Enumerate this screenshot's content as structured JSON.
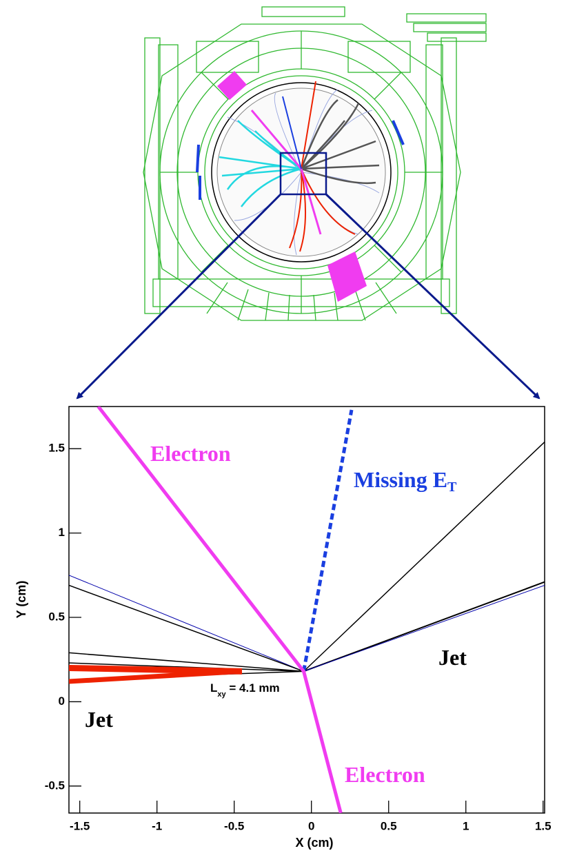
{
  "chart_data": {
    "type": "line",
    "xlabel": "X (cm)",
    "ylabel": "Y (cm)",
    "xlim": [
      -1.57,
      1.51
    ],
    "ylim": [
      -0.66,
      1.75
    ],
    "xticks": [
      -1.5,
      -1,
      -0.5,
      0,
      0.5,
      1,
      1.5
    ],
    "yticks": [
      -0.5,
      0,
      0.5,
      1,
      1.5
    ],
    "series": [
      {
        "color": "#0000aa",
        "width": 1,
        "x": [
          -1.57,
          -0.05
        ],
        "values": [
          0.75,
          0.18
        ]
      },
      {
        "color": "#000000",
        "width": 1.5,
        "x": [
          -1.57,
          -0.05
        ],
        "values": [
          0.69,
          0.18
        ]
      },
      {
        "color": "#000000",
        "width": 1.5,
        "x": [
          -1.57,
          -0.05
        ],
        "values": [
          0.29,
          0.18
        ]
      },
      {
        "color": "#000000",
        "width": 1.5,
        "x": [
          -1.57,
          -0.05
        ],
        "values": [
          0.23,
          0.18
        ]
      },
      {
        "color": "#000000",
        "width": 1.5,
        "x": [
          -1.57,
          -0.05
        ],
        "values": [
          0.13,
          0.18
        ]
      },
      {
        "color": "#ee2200",
        "width": 9,
        "x": [
          -1.57,
          -0.45
        ],
        "values": [
          0.2,
          0.18
        ]
      },
      {
        "color": "#ee2200",
        "width": 7,
        "x": [
          -1.57,
          -0.45
        ],
        "values": [
          0.12,
          0.18
        ]
      },
      {
        "color": "#000000",
        "width": 1.5,
        "x": [
          -0.05,
          1.51
        ],
        "values": [
          0.18,
          1.54
        ]
      },
      {
        "color": "#000000",
        "width": 2,
        "x": [
          -0.05,
          1.51
        ],
        "values": [
          0.18,
          0.71
        ]
      },
      {
        "color": "#0000aa",
        "width": 1,
        "x": [
          -0.05,
          1.51
        ],
        "values": [
          0.18,
          0.69
        ]
      },
      {
        "color": "#1a3fe0",
        "width": 5,
        "dash": true,
        "x": [
          -0.05,
          0.26
        ],
        "values": [
          0.18,
          1.73
        ]
      },
      {
        "color": "#f03cf0",
        "width": 5,
        "x": [
          -1.38,
          -0.05,
          0.19
        ],
        "values": [
          1.75,
          0.18,
          -0.66
        ]
      }
    ],
    "annotations": [
      {
        "text": "Electron",
        "color": "#f03cf0"
      },
      {
        "text": "Missing E",
        "sub": "T",
        "color": "#1a3fe0"
      },
      {
        "text": "Jet",
        "color": "#000000"
      },
      {
        "text": "Jet",
        "color": "#000000"
      },
      {
        "text": "Electron",
        "color": "#f03cf0"
      },
      {
        "text": "L",
        "sub": "xy",
        "rest": " = 4.1 mm",
        "color": "#000000"
      }
    ]
  }
}
